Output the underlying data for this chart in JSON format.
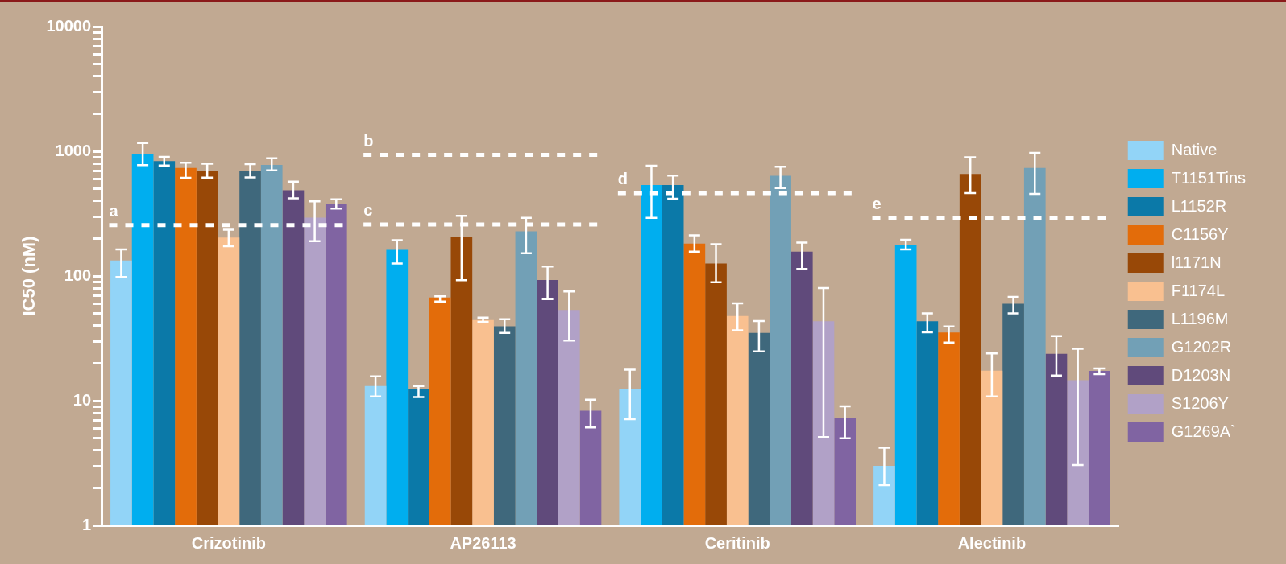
{
  "chart_data": {
    "type": "bar",
    "ylabel": "IC50 (nM)",
    "log": true,
    "grid": false,
    "legend": "right",
    "categories": [
      "Crizotinib",
      "AP26113",
      "Ceritinib",
      "Alectinib"
    ],
    "ylim": [
      1,
      10000
    ],
    "yticks": [
      1,
      {
        "value": 2,
        "label": null
      },
      {
        "value": 3,
        "label": null
      },
      {
        "value": 4,
        "label": null
      },
      {
        "value": 5,
        "label": null
      },
      {
        "value": 6,
        "label": null
      },
      {
        "value": 7,
        "label": null
      },
      {
        "value": 8,
        "label": null
      },
      {
        "value": 9,
        "label": null
      },
      10,
      {
        "value": 20,
        "label": null
      },
      {
        "value": 30,
        "label": null
      },
      {
        "value": 40,
        "label": null
      },
      {
        "value": 50,
        "label": null
      },
      {
        "value": 60,
        "label": null
      },
      {
        "value": 70,
        "label": null
      },
      {
        "value": 80,
        "label": null
      },
      {
        "value": 90,
        "label": null
      },
      100,
      {
        "value": 200,
        "label": null
      },
      {
        "value": 300,
        "label": null
      },
      {
        "value": 400,
        "label": null
      },
      {
        "value": 500,
        "label": null
      },
      {
        "value": 600,
        "label": null
      },
      {
        "value": 700,
        "label": null
      },
      {
        "value": 800,
        "label": null
      },
      {
        "value": 900,
        "label": null
      },
      1000,
      {
        "value": 2000,
        "label": null
      },
      {
        "value": 3000,
        "label": null
      },
      {
        "value": 4000,
        "label": null
      },
      {
        "value": 5000,
        "label": null
      },
      {
        "value": 6000,
        "label": null
      },
      {
        "value": 7000,
        "label": null
      },
      {
        "value": 8000,
        "label": null
      },
      {
        "value": 9000,
        "label": null
      },
      10000
    ],
    "series": [
      {
        "name": "Native",
        "color": "#92d4f7",
        "values": [
          133,
          13.1,
          12.4,
          3.0
        ],
        "errors": [
          [
            98,
            163
          ],
          [
            10.8,
            15.7
          ],
          [
            7.1,
            17.7
          ],
          [
            2.1,
            4.2
          ]
        ]
      },
      {
        "name": "T1151Tins",
        "color": "#00aeef",
        "values": [
          949,
          162,
          535,
          176
        ],
        "errors": [
          [
            775,
            1166
          ],
          [
            126,
            194
          ],
          [
            292,
            766
          ],
          [
            163,
            195
          ]
        ]
      },
      {
        "name": "L1152R",
        "color": "#0b79a8",
        "values": [
          834,
          12.4,
          535,
          43.4
        ],
        "errors": [
          [
            767,
            900
          ],
          [
            10.7,
            13.1
          ],
          [
            416,
            638
          ],
          [
            35.4,
            50.2
          ]
        ]
      },
      {
        "name": "C1156Y",
        "color": "#e36c0a",
        "values": [
          736,
          67.3,
          182,
          35.2
        ],
        "errors": [
          [
            612,
            809
          ],
          [
            62.5,
            68.7
          ],
          [
            157,
            212
          ],
          [
            29.3,
            39.3
          ]
        ]
      },
      {
        "name": "l1171N",
        "color": "#984807",
        "values": [
          689,
          206,
          126,
          658
        ],
        "errors": [
          [
            615,
            795
          ],
          [
            92.5,
            304
          ],
          [
            89,
            180
          ],
          [
            462,
            896
          ]
        ]
      },
      {
        "name": "F1174L",
        "color": "#f9c090",
        "values": [
          203,
          44.3,
          47.7,
          17.4
        ],
        "errors": [
          [
            173,
            235
          ],
          [
            42.9,
            46.4
          ],
          [
            36.7,
            60.3
          ],
          [
            10.8,
            23.9
          ]
        ]
      },
      {
        "name": "L1196M",
        "color": "#3f687c",
        "values": [
          698,
          39.5,
          35,
          59.9
        ],
        "errors": [
          [
            616,
            788
          ],
          [
            34.9,
            45
          ],
          [
            24.8,
            43.6
          ],
          [
            50.2,
            67.9
          ]
        ]
      },
      {
        "name": "G1202R",
        "color": "#72a0b6",
        "values": [
          776,
          228,
          635,
          735
        ],
        "errors": [
          [
            702,
            879
          ],
          [
            152,
            293
          ],
          [
            507,
            751
          ],
          [
            455,
            969
          ]
        ]
      },
      {
        "name": "D1203N",
        "color": "#604a7b",
        "values": [
          486,
          92.9,
          157,
          23.8
        ],
        "errors": [
          [
            420,
            570
          ],
          [
            65.2,
            119
          ],
          [
            114,
            185
          ],
          [
            15.9,
            33
          ]
        ]
      },
      {
        "name": "S1206Y",
        "color": "#b1a1c7",
        "values": [
          294,
          53.4,
          43.4,
          14.6
        ],
        "errors": [
          [
            190,
            396
          ],
          [
            30.4,
            75
          ],
          [
            5.1,
            80
          ],
          [
            3.05,
            26.1
          ]
        ]
      },
      {
        "name": "G1269A`",
        "color": "#8064a2",
        "values": [
          378,
          8.3,
          7.2,
          17.3
        ],
        "errors": [
          [
            347,
            412
          ],
          [
            6.1,
            10.2
          ],
          [
            5.0,
            9.0
          ],
          [
            16.3,
            18.1
          ]
        ]
      }
    ],
    "ref_lines": [
      {
        "axis": "y",
        "value": 256,
        "label": "a",
        "color": "#ffffff",
        "line_style": "dotted"
      },
      {
        "axis": "y",
        "value": 935,
        "label": "b",
        "color": "#ffffff",
        "line_style": "dotted"
      },
      {
        "axis": "y",
        "value": 259,
        "label": "c",
        "color": "#ffffff",
        "line_style": "dotted"
      },
      {
        "axis": "y",
        "value": 462,
        "label": "d",
        "color": "#ffffff",
        "line_style": "dotted"
      },
      {
        "axis": "y",
        "value": 293,
        "label": "e",
        "color": "#ffffff",
        "line_style": "dotted"
      }
    ]
  }
}
